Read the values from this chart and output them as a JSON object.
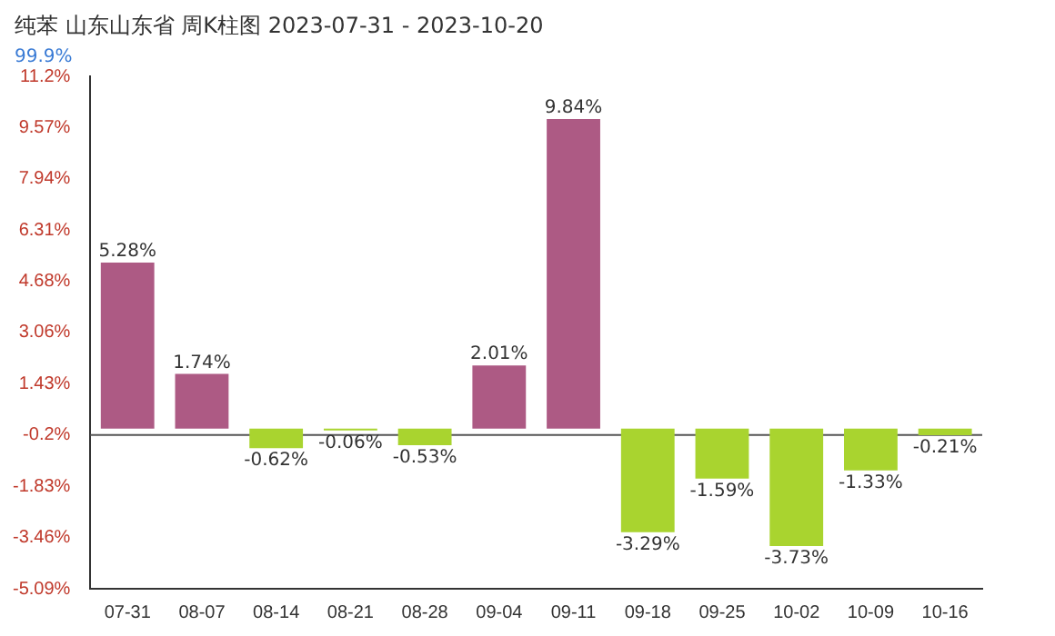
{
  "chart_data": {
    "type": "bar",
    "title": "纯苯 山东山东省 周K柱图 2023-07-31 - 2023-10-20",
    "subtitle": "99.9%",
    "categories": [
      "07-31",
      "08-07",
      "08-14",
      "08-21",
      "08-28",
      "09-04",
      "09-11",
      "09-18",
      "09-25",
      "10-02",
      "10-09",
      "10-16"
    ],
    "values": [
      5.28,
      1.74,
      -0.62,
      -0.06,
      -0.53,
      2.01,
      9.84,
      -3.29,
      -1.59,
      -3.73,
      -1.33,
      -0.21
    ],
    "colors": [
      "#ad5a84",
      "#ad5a84",
      "#a9d42f",
      "#a9d42f",
      "#a9d42f",
      "#ad5a84",
      "#ad5a84",
      "#a9d42f",
      "#a9d42f",
      "#a9d42f",
      "#a9d42f",
      "#a9d42f"
    ],
    "value_labels": [
      "5.28%",
      "1.74%",
      "-0.62%",
      "-0.06%",
      "-0.53%",
      "2.01%",
      "9.84%",
      "-3.29%",
      "-1.59%",
      "-3.73%",
      "-1.33%",
      "-0.21%"
    ],
    "ylim": [
      -5.09,
      11.2
    ],
    "yticks": [
      {
        "value": 11.2,
        "label": "11.2%"
      },
      {
        "value": 9.57,
        "label": "9.57%"
      },
      {
        "value": 7.94,
        "label": "7.94%"
      },
      {
        "value": 6.31,
        "label": "6.31%"
      },
      {
        "value": 4.68,
        "label": "4.68%"
      },
      {
        "value": 3.06,
        "label": "3.06%"
      },
      {
        "value": 1.43,
        "label": "1.43%"
      },
      {
        "value": -0.2,
        "label": "-0.2%"
      },
      {
        "value": -1.83,
        "label": "-1.83%"
      },
      {
        "value": -3.46,
        "label": "-3.46%"
      },
      {
        "value": -5.09,
        "label": "-5.09%"
      }
    ],
    "ref_lines": [
      {
        "axis": "y",
        "value": -0.2,
        "color": "#555555"
      }
    ],
    "grid": false,
    "legend": false
  }
}
